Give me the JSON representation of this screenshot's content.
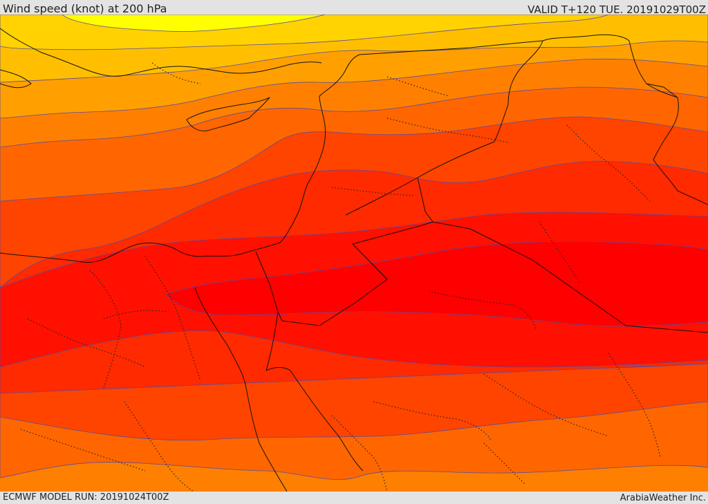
{
  "header": {
    "title": "Wind speed (knot) at 200 hPa",
    "valid_time": "VALID T+120 TUE. 20191029T00Z"
  },
  "footer": {
    "model_run": "ECMWF MODEL RUN: 20191024T00Z",
    "provider": "ArabiaWeather Inc."
  },
  "map": {
    "variable": "wind speed",
    "level": "200 hPa",
    "units": "knot",
    "contour_line_color": "#5a4aa0",
    "fill_palette": [
      "#ffff00",
      "#ffd200",
      "#ffbf00",
      "#ffa000",
      "#ff8000",
      "#ff6600",
      "#ff4400",
      "#ff2a00",
      "#ff1000",
      "#ff0000"
    ]
  }
}
